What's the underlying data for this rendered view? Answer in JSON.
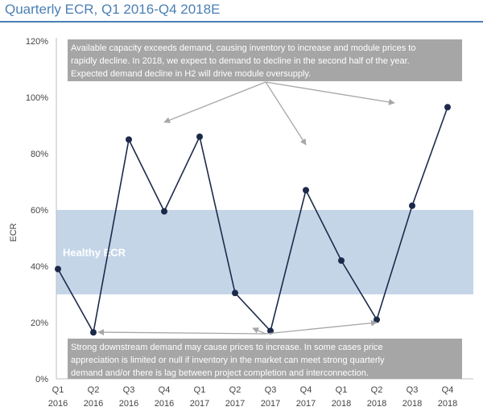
{
  "chart_data": {
    "type": "line",
    "title": "Quarterly ECR, Q1 2016-Q4 2018E",
    "xlabel": "",
    "ylabel": "ECR",
    "ylim": [
      0,
      120
    ],
    "y_ticks": [
      "0%",
      "20%",
      "40%",
      "60%",
      "80%",
      "100%",
      "120%"
    ],
    "categories": [
      {
        "quarter": "Q1",
        "year": "2016"
      },
      {
        "quarter": "Q2",
        "year": "2016"
      },
      {
        "quarter": "Q3",
        "year": "2016"
      },
      {
        "quarter": "Q4",
        "year": "2016"
      },
      {
        "quarter": "Q1",
        "year": "2017"
      },
      {
        "quarter": "Q2",
        "year": "2017"
      },
      {
        "quarter": "Q3",
        "year": "2017"
      },
      {
        "quarter": "Q4",
        "year": "2017"
      },
      {
        "quarter": "Q1",
        "year": "2018"
      },
      {
        "quarter": "Q2",
        "year": "2018"
      },
      {
        "quarter": "Q3",
        "year": "2018"
      },
      {
        "quarter": "Q4",
        "year": "2018"
      }
    ],
    "series": [
      {
        "name": "ECR",
        "values": [
          39,
          16.5,
          85,
          59.5,
          86,
          30.5,
          17,
          67,
          42,
          21,
          61.5,
          96.5
        ]
      }
    ],
    "band": {
      "label": "Healthy ECR",
      "from": 30,
      "to": 60
    },
    "grid": false,
    "annotations": {
      "top": {
        "lines": [
          "Available capacity exceeds demand, causing inventory to increase and module prices to",
          "rapidly decline. In 2018, we expect to demand to decline in the second half of the year.",
          "Expected demand decline in H2 will drive module oversupply."
        ],
        "arrow_targets": [
          3,
          7,
          9.5
        ]
      },
      "bottom": {
        "lines": [
          "Strong downstream demand may cause prices to increase. In some cases price",
          "appreciation is limited or null if inventory in the market can meet strong quarterly",
          "demand and/or there is lag between project completion and interconnection."
        ],
        "arrow_targets": [
          1,
          5.5,
          9
        ]
      }
    },
    "colors": {
      "line": "#1c2a4a",
      "band": "#c5d5e8",
      "annotation_box": "#a6a6a6",
      "title": "#4a7fb5"
    }
  }
}
